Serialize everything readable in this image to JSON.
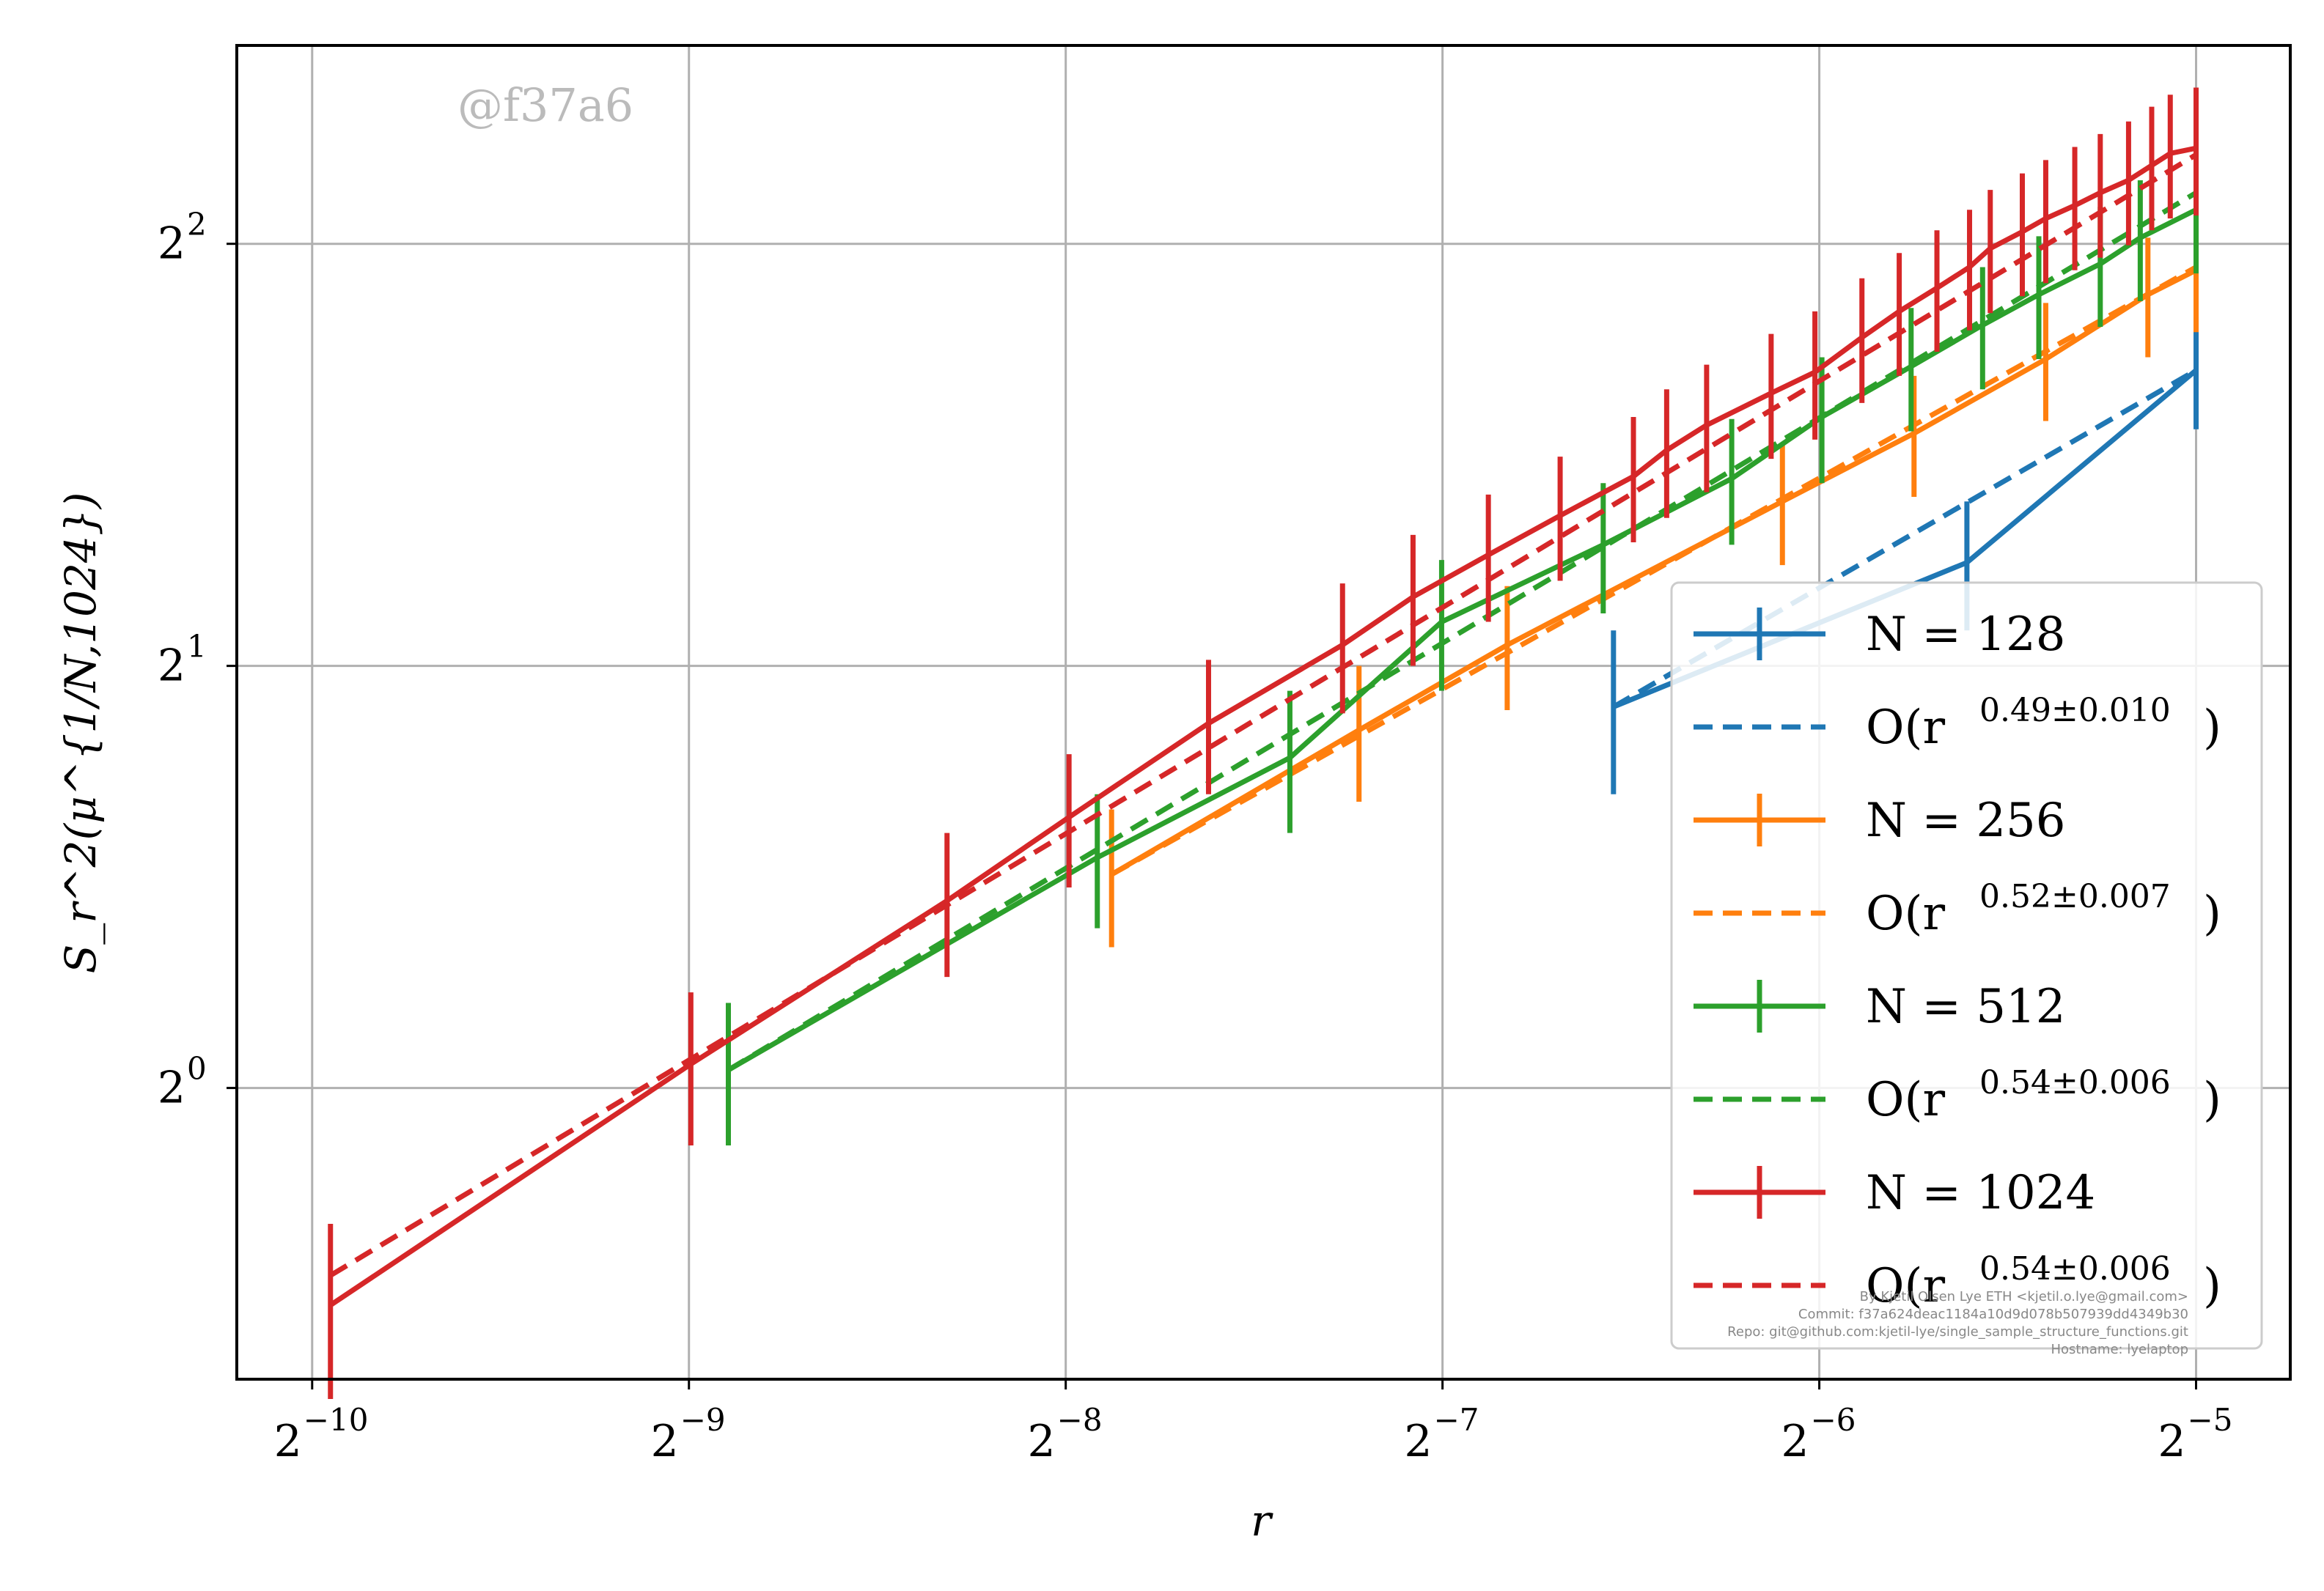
{
  "watermark": "@f37a6",
  "footer": [
    "By Kjetil Olsen Lye ETH <kjetil.o.lye@gmail.com>",
    "Commit: f37a624deac1184a10d9d078b507939dd4349b30",
    "Repo: git@github.com:kjetil-lye/single_sample_structure_functions.git",
    "Hostname: lyelaptop"
  ],
  "chart_data": {
    "type": "line",
    "xlabel": "r",
    "ylabel": "S_r^2(μ^{1/N,1024})",
    "xscale": "log2",
    "yscale": "log2",
    "xlim_exp": [
      -10.2,
      -4.75
    ],
    "ylim_exp": [
      -0.69,
      2.47
    ],
    "xticks": [
      {
        "base": "2",
        "exp": "−10",
        "value_exp": -10
      },
      {
        "base": "2",
        "exp": "−9",
        "value_exp": -9
      },
      {
        "base": "2",
        "exp": "−8",
        "value_exp": -8
      },
      {
        "base": "2",
        "exp": "−7",
        "value_exp": -7
      },
      {
        "base": "2",
        "exp": "−6",
        "value_exp": -6
      },
      {
        "base": "2",
        "exp": "−5",
        "value_exp": -5
      }
    ],
    "yticks": [
      {
        "base": "2",
        "exp": "0",
        "value_exp": 0
      },
      {
        "base": "2",
        "exp": "1",
        "value_exp": 1
      },
      {
        "base": "2",
        "exp": "2",
        "value_exp": 2
      }
    ],
    "grid": true,
    "legend_position": "lower-right",
    "series": [
      {
        "name": "N = 128",
        "fit_label": "O(r",
        "fit_exponent": "0.49±0.010",
        "color": "#1f77b4",
        "x": [
          0.0107,
          0.0205,
          0.03125
        ],
        "y": [
          1.87,
          2.37,
          3.25
        ],
        "yerr": [
          0.25,
          0.25,
          0.3
        ],
        "fit_x": [
          0.0107,
          0.03125
        ],
        "fit_y": [
          1.87,
          3.25
        ]
      },
      {
        "name": "N = 256",
        "fit_label": "O(r",
        "fit_exponent": "0.52±0.007",
        "color": "#ff7f0e",
        "x": [
          0.00425,
          0.0067,
          0.0088,
          0.0146,
          0.0186,
          0.0237,
          0.0286,
          0.03125
        ],
        "y": [
          1.42,
          1.8,
          2.07,
          2.62,
          2.93,
          3.31,
          3.68,
          3.83
        ],
        "yerr": [
          0.16,
          0.2,
          0.21,
          0.26,
          0.29,
          0.32,
          0.36,
          0.37
        ],
        "fit_x": [
          0.00425,
          0.03125
        ],
        "fit_y": [
          1.42,
          3.85
        ]
      },
      {
        "name": "N = 512",
        "fit_label": "O(r",
        "fit_exponent": "0.54±0.006",
        "color": "#2ca02c",
        "x": [
          0.0021,
          0.00414,
          0.0059,
          0.0078,
          0.0105,
          0.0133,
          0.0157,
          0.0185,
          0.0211,
          0.0234,
          0.0262,
          0.0282,
          0.03125
        ],
        "y": [
          1.03,
          1.46,
          1.72,
          2.15,
          2.44,
          2.72,
          3.01,
          3.27,
          3.5,
          3.68,
          3.87,
          4.04,
          4.23
        ],
        "yerr": [
          0.12,
          0.16,
          0.2,
          0.23,
          0.26,
          0.28,
          0.31,
          0.33,
          0.35,
          0.37,
          0.38,
          0.4,
          0.42
        ],
        "fit_x": [
          0.0021,
          0.03125
        ],
        "fit_y": [
          1.03,
          4.35
        ]
      },
      {
        "name": "N = 1024",
        "fit_label": "O(r",
        "fit_exponent": "0.54±0.006",
        "color": "#d62728",
        "x": [
          0.00101,
          0.00196,
          0.00314,
          0.00393,
          0.00508,
          0.0065,
          0.0074,
          0.0085,
          0.0097,
          0.0111,
          0.0118,
          0.0127,
          0.0143,
          0.0155,
          0.0169,
          0.0181,
          0.0194,
          0.0206,
          0.0214,
          0.0227,
          0.0237,
          0.025,
          0.0262,
          0.0276,
          0.0288,
          0.0298,
          0.03125
        ],
        "y": [
          0.7,
          1.04,
          1.36,
          1.56,
          1.82,
          2.07,
          2.24,
          2.4,
          2.56,
          2.73,
          2.85,
          2.97,
          3.13,
          3.24,
          3.43,
          3.58,
          3.72,
          3.85,
          3.97,
          4.08,
          4.17,
          4.26,
          4.35,
          4.44,
          4.55,
          4.64,
          4.68
        ],
        "yerr": [
          0.1,
          0.13,
          0.16,
          0.17,
          0.2,
          0.22,
          0.24,
          0.25,
          0.26,
          0.28,
          0.3,
          0.31,
          0.32,
          0.34,
          0.35,
          0.36,
          0.37,
          0.38,
          0.4,
          0.41,
          0.42,
          0.43,
          0.44,
          0.45,
          0.46,
          0.47,
          0.49
        ],
        "fit_x": [
          0.00101,
          0.03125
        ],
        "fit_y": [
          0.735,
          4.63
        ]
      }
    ]
  }
}
